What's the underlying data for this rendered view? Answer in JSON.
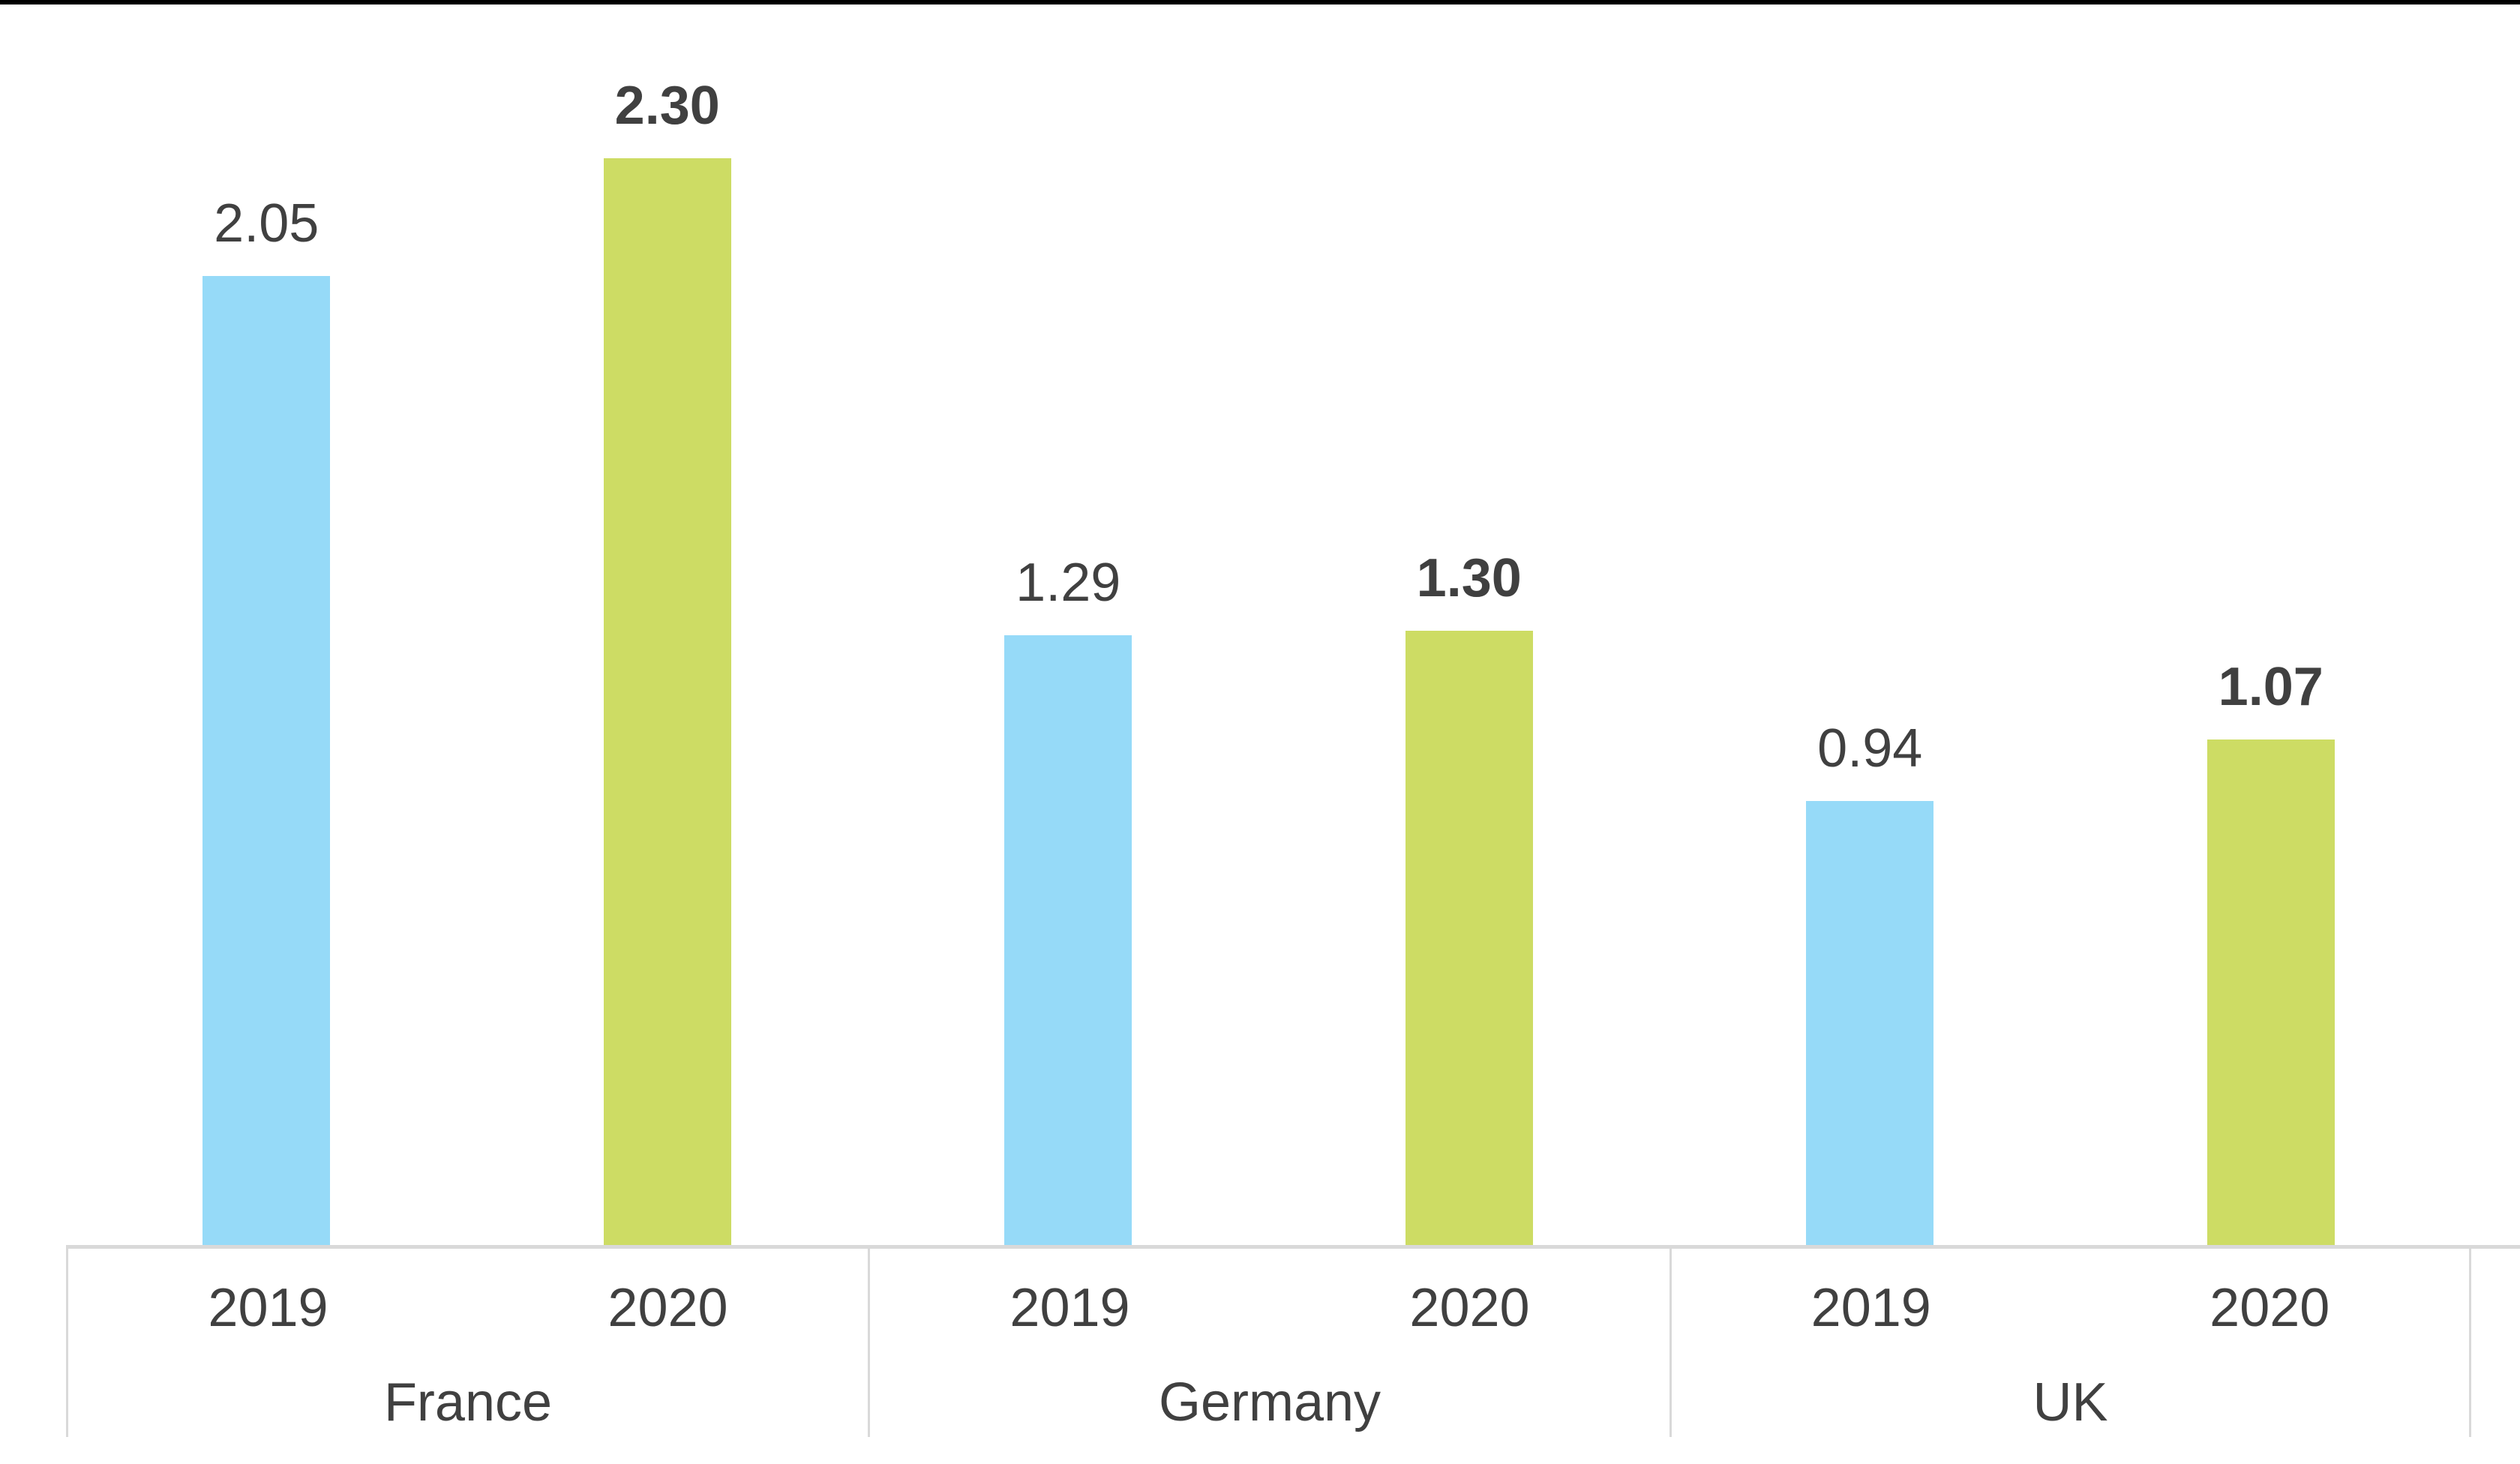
{
  "chart_data": {
    "type": "bar",
    "title": "",
    "xlabel": "",
    "ylabel": "",
    "categories": [
      "France",
      "Germany",
      "UK"
    ],
    "series": [
      {
        "name": "2019",
        "color": "#96DAF8",
        "label_weight": "regular",
        "values": [
          2.05,
          1.29,
          0.94
        ],
        "value_labels": [
          "2.05",
          "1.29",
          "0.94"
        ]
      },
      {
        "name": "2020",
        "color": "#CDDC64",
        "label_weight": "bold",
        "values": [
          2.3,
          1.3,
          1.07
        ],
        "value_labels": [
          "2.30",
          "1.30",
          "1.07"
        ]
      }
    ],
    "ylim": [
      0,
      2.63
    ],
    "grid": false,
    "legend_position": "none",
    "value_label_position": "outside-end",
    "axis_line_color": "#D9D9D9",
    "text_color": "#404040"
  }
}
